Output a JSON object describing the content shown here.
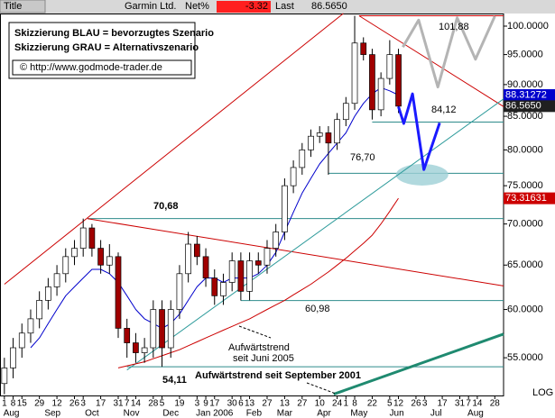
{
  "chart_data": {
    "type": "candlestick",
    "header_label": "Title",
    "title": "Garmin Ltd.",
    "net_label": "Net%",
    "net_value": "-3.32",
    "last_label": "Last",
    "last": "86.5650",
    "legend_lines": [
      "Skizzierung BLAU = bevorzugtes Szenario",
      "Skizzierung GRAU = Alternativszenario",
      "© http://www.godmode-trader.de"
    ],
    "scale_label": "LOG",
    "log": true,
    "xlim": [
      -0.5,
      57
    ],
    "ylim": [
      51.3,
      102.3
    ],
    "x": [
      0,
      1,
      2,
      3,
      4,
      5,
      6,
      7,
      8,
      9,
      10,
      11,
      12,
      13,
      14,
      15,
      16,
      17,
      18,
      19,
      20,
      21,
      22,
      23,
      24,
      25,
      26,
      27,
      28,
      29,
      30,
      31,
      32,
      33,
      34,
      35,
      36,
      37,
      38,
      39,
      40,
      41,
      42,
      43,
      44,
      45
    ],
    "open": [
      52.5,
      54,
      56,
      57.5,
      59,
      61,
      62.5,
      64,
      66,
      67,
      69.5,
      67,
      65,
      66,
      58,
      56.5,
      55.5,
      56,
      60,
      56,
      60,
      64,
      67.5,
      66,
      63.5,
      61.5,
      63,
      65.5,
      62,
      65.5,
      65,
      67,
      69,
      75,
      77.5,
      80,
      82,
      82.5,
      81,
      84.5,
      87,
      97,
      95,
      86,
      91,
      95
    ],
    "high": [
      55,
      57,
      58.5,
      60,
      62,
      63.5,
      65,
      67,
      68,
      70.68,
      70,
      68,
      67.5,
      66.5,
      59,
      57.5,
      57,
      61,
      61,
      61,
      65,
      69,
      68.5,
      67,
      64.5,
      64,
      66.5,
      66.5,
      66.5,
      66.5,
      68,
      70,
      76,
      78.5,
      81,
      83,
      83.5,
      83.5,
      85.5,
      88,
      101.88,
      98,
      96,
      92,
      97.5,
      96
    ],
    "low": [
      51.5,
      53,
      55,
      56.5,
      58,
      60,
      61.5,
      63,
      65,
      66,
      66,
      64,
      64,
      57,
      55,
      54.5,
      54.5,
      55,
      54.11,
      55,
      59,
      63,
      65,
      62.5,
      60.5,
      60.5,
      62,
      60.98,
      61,
      64,
      64,
      66,
      68,
      74,
      76.5,
      79,
      81,
      76.5,
      80,
      83.5,
      86,
      94,
      84.5,
      85,
      90,
      85.5
    ],
    "close": [
      54,
      56,
      57.5,
      59,
      61,
      62.5,
      64,
      66,
      67,
      69.5,
      67,
      65,
      66,
      58,
      56.5,
      55.5,
      56,
      60,
      56,
      60,
      64,
      67.5,
      66,
      63.5,
      61.5,
      63,
      65.5,
      62,
      65.5,
      65,
      67,
      69,
      75,
      77.5,
      80,
      82,
      82.5,
      81,
      84.5,
      87,
      97,
      95,
      86,
      91,
      95,
      86.565
    ],
    "up_color": "#ffffff",
    "down_color": "#a00000",
    "overlays": [
      {
        "color": "#0000cc",
        "values": [
          null,
          null,
          null,
          56,
          57,
          58.5,
          60,
          61.5,
          62.5,
          63.5,
          64.5,
          64.5,
          64,
          63,
          61.5,
          60,
          59,
          58.5,
          58,
          58.5,
          59.5,
          61,
          62.5,
          63.5,
          63.5,
          63,
          63.5,
          63.5,
          63.5,
          64,
          65,
          66.5,
          69,
          71.5,
          74,
          76,
          78,
          79.5,
          81,
          82.5,
          85,
          87,
          88.5,
          89.5,
          89,
          88.31272
        ]
      },
      {
        "color": "#cc0000",
        "values": [
          null,
          null,
          null,
          null,
          null,
          null,
          null,
          null,
          null,
          null,
          null,
          null,
          null,
          54,
          54.2,
          54.4,
          54.6,
          54.9,
          55.2,
          55.5,
          55.8,
          56.2,
          56.6,
          57,
          57.4,
          57.8,
          58.2,
          58.6,
          59,
          59.5,
          60,
          60.5,
          61,
          61.6,
          62.2,
          62.8,
          63.5,
          64.2,
          65,
          65.8,
          66.7,
          67.6,
          68.6,
          70,
          71.6,
          73.31631
        ]
      }
    ],
    "yticks": [
      {
        "value": 55,
        "label": "55.0000"
      },
      {
        "value": 60,
        "label": "60.0000"
      },
      {
        "value": 65,
        "label": "65.0000"
      },
      {
        "value": 70,
        "label": "70.0000"
      },
      {
        "value": 75,
        "label": "75.0000"
      },
      {
        "value": 80,
        "label": "80.0000"
      },
      {
        "value": 85,
        "label": "85.0000"
      },
      {
        "value": 90,
        "label": "90.0000"
      },
      {
        "value": 95,
        "label": "95.0000"
      },
      {
        "value": 100,
        "label": "100.0000"
      }
    ],
    "xticks": [
      {
        "value": 0,
        "label": "1"
      },
      {
        "value": 1,
        "label": "8"
      },
      {
        "value": 2,
        "label": "15"
      },
      {
        "value": 4,
        "label": "29"
      },
      {
        "value": 6,
        "label": "12"
      },
      {
        "value": 8,
        "label": "26"
      },
      {
        "value": 9,
        "label": "3"
      },
      {
        "value": 11,
        "label": "17"
      },
      {
        "value": 13,
        "label": "31"
      },
      {
        "value": 14,
        "label": "7"
      },
      {
        "value": 15,
        "label": "14"
      },
      {
        "value": 17,
        "label": "28"
      },
      {
        "value": 18,
        "label": "5"
      },
      {
        "value": 20,
        "label": "19"
      },
      {
        "value": 22,
        "label": "3"
      },
      {
        "value": 23,
        "label": "9"
      },
      {
        "value": 24,
        "label": "17"
      },
      {
        "value": 26,
        "label": "30"
      },
      {
        "value": 27,
        "label": "6"
      },
      {
        "value": 28,
        "label": "13"
      },
      {
        "value": 30,
        "label": "27"
      },
      {
        "value": 32,
        "label": "13"
      },
      {
        "value": 34,
        "label": "27"
      },
      {
        "value": 36,
        "label": "10"
      },
      {
        "value": 38,
        "label": "24"
      },
      {
        "value": 39,
        "label": "1"
      },
      {
        "value": 40,
        "label": "8"
      },
      {
        "value": 42,
        "label": "22"
      },
      {
        "value": 44,
        "label": "5"
      },
      {
        "value": 45,
        "label": "12"
      },
      {
        "value": 47,
        "label": "26"
      },
      {
        "value": 48,
        "label": "3"
      },
      {
        "value": 50,
        "label": "17"
      },
      {
        "value": 52,
        "label": "31"
      },
      {
        "value": 53,
        "label": "7"
      },
      {
        "value": 54,
        "label": "14"
      },
      {
        "value": 56,
        "label": "28"
      }
    ],
    "month_ticks": [
      {
        "value": 0.8,
        "label": "Aug"
      },
      {
        "value": 5.5,
        "label": "Sep"
      },
      {
        "value": 10,
        "label": "Oct"
      },
      {
        "value": 14.5,
        "label": "Nov"
      },
      {
        "value": 19,
        "label": "Dec"
      },
      {
        "value": 24,
        "label": "Jan 2006"
      },
      {
        "value": 28.5,
        "label": "Feb"
      },
      {
        "value": 32,
        "label": "Mar"
      },
      {
        "value": 36.5,
        "label": "Apr"
      },
      {
        "value": 40.5,
        "label": "May"
      },
      {
        "value": 44.8,
        "label": "Jun"
      },
      {
        "value": 49.3,
        "label": "Jul"
      },
      {
        "value": 53.8,
        "label": "Aug"
      }
    ],
    "levels": [
      {
        "value": 101.88,
        "label": "101,88",
        "x_start": 40.5,
        "color": "#cc0000"
      },
      {
        "value": 84.12,
        "label": "84,12",
        "x_start": 42,
        "color": "#2e8b8b"
      },
      {
        "value": 76.7,
        "label": "76,70",
        "x_start": 37,
        "color": "#2e8b8b"
      },
      {
        "value": 70.68,
        "label": "70,68",
        "x_start": 9.5,
        "color": "#2e8b8b"
      },
      {
        "value": 60.98,
        "label": "60,98",
        "x_start": 27,
        "color": "#2e8b8b"
      },
      {
        "value": 54.11,
        "label": "54,11",
        "x_start": 14,
        "color": "#2e8b8b"
      }
    ],
    "trendlines": [
      {
        "color": "#cc0000",
        "width": 1,
        "x": [
          0,
          38.7
        ],
        "values": [
          62.8,
          102.3
        ]
      },
      {
        "color": "#cc0000",
        "width": 1,
        "x": [
          9.5,
          57
        ],
        "values": [
          70.68,
          62.6
        ]
      },
      {
        "color": "#cc0000",
        "width": 1,
        "x": [
          40.5,
          57
        ],
        "values": [
          101.88,
          86.5
        ]
      },
      {
        "color": "#2e9b9b",
        "width": 1,
        "x": [
          14,
          57
        ],
        "values": [
          53.8,
          87.7
        ]
      },
      {
        "color": "#1f8a70",
        "width": 3,
        "x": [
          37.6,
          57
        ],
        "values": [
          51.5,
          57.4
        ]
      }
    ],
    "scenarios": [
      {
        "color": "#1a1aff",
        "x": [
          45,
          45.6,
          46.6,
          47.9,
          49.7
        ],
        "values": [
          86.5,
          83.9,
          88.5,
          77.2,
          84.0
        ]
      },
      {
        "color": "#b4b4b4",
        "x": [
          45.5,
          47.3,
          49.5,
          51.7,
          53.8,
          56
        ],
        "values": [
          96.3,
          101.1,
          89.6,
          101.5,
          94.2,
          101.8
        ]
      }
    ],
    "target_zone": {
      "x": 47.7,
      "value": 76.5,
      "color": "#9ed0d6"
    },
    "annotations": [
      "Aufwärtstrend",
      "seit Juni 2005",
      "Aufwärtstrend seit September 2001"
    ]
  }
}
